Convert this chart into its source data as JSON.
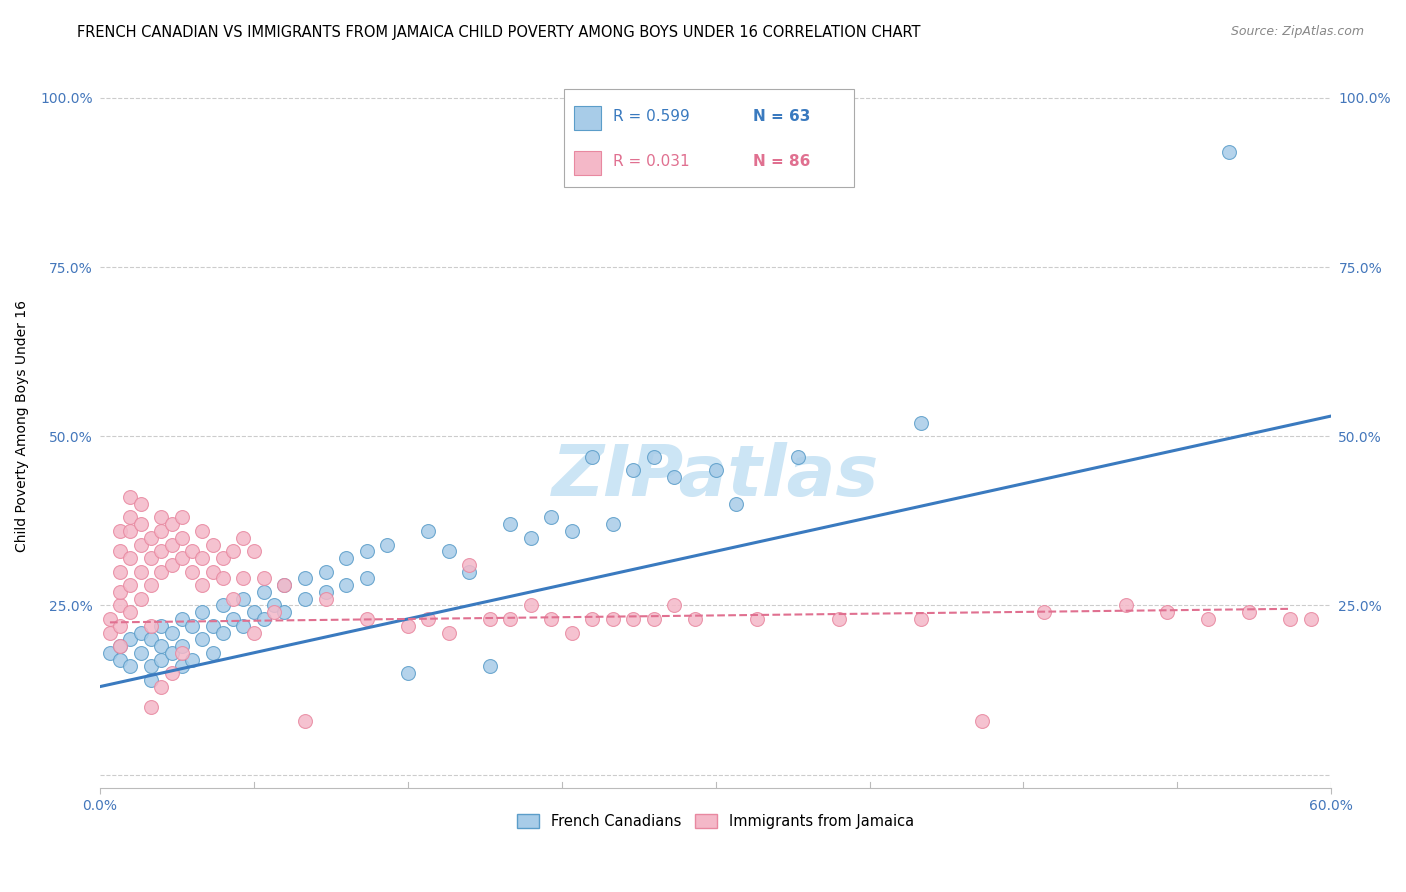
{
  "title": "FRENCH CANADIAN VS IMMIGRANTS FROM JAMAICA CHILD POVERTY AMONG BOYS UNDER 16 CORRELATION CHART",
  "source": "Source: ZipAtlas.com",
  "ylabel": "Child Poverty Among Boys Under 16",
  "xlim": [
    0.0,
    0.6
  ],
  "ylim": [
    -0.02,
    1.05
  ],
  "yticks": [
    0.0,
    0.25,
    0.5,
    0.75,
    1.0
  ],
  "ytick_labels": [
    "",
    "25.0%",
    "50.0%",
    "75.0%",
    "100.0%"
  ],
  "xtick_labels": [
    "0.0%",
    "60.0%"
  ],
  "blue_color": "#a8cce8",
  "pink_color": "#f4b8c8",
  "blue_edge_color": "#5b9dc9",
  "pink_edge_color": "#e888a0",
  "blue_line_color": "#3a7abf",
  "pink_line_color": "#e07090",
  "tick_color": "#4477bb",
  "watermark": "ZIPatlas",
  "blue_points": [
    [
      0.005,
      0.18
    ],
    [
      0.01,
      0.19
    ],
    [
      0.01,
      0.17
    ],
    [
      0.015,
      0.2
    ],
    [
      0.015,
      0.16
    ],
    [
      0.02,
      0.21
    ],
    [
      0.02,
      0.18
    ],
    [
      0.025,
      0.2
    ],
    [
      0.025,
      0.16
    ],
    [
      0.025,
      0.14
    ],
    [
      0.03,
      0.22
    ],
    [
      0.03,
      0.19
    ],
    [
      0.03,
      0.17
    ],
    [
      0.035,
      0.21
    ],
    [
      0.035,
      0.18
    ],
    [
      0.04,
      0.23
    ],
    [
      0.04,
      0.19
    ],
    [
      0.04,
      0.16
    ],
    [
      0.045,
      0.22
    ],
    [
      0.045,
      0.17
    ],
    [
      0.05,
      0.24
    ],
    [
      0.05,
      0.2
    ],
    [
      0.055,
      0.22
    ],
    [
      0.055,
      0.18
    ],
    [
      0.06,
      0.25
    ],
    [
      0.06,
      0.21
    ],
    [
      0.065,
      0.23
    ],
    [
      0.07,
      0.26
    ],
    [
      0.07,
      0.22
    ],
    [
      0.075,
      0.24
    ],
    [
      0.08,
      0.27
    ],
    [
      0.08,
      0.23
    ],
    [
      0.085,
      0.25
    ],
    [
      0.09,
      0.28
    ],
    [
      0.09,
      0.24
    ],
    [
      0.1,
      0.29
    ],
    [
      0.1,
      0.26
    ],
    [
      0.11,
      0.3
    ],
    [
      0.11,
      0.27
    ],
    [
      0.12,
      0.32
    ],
    [
      0.12,
      0.28
    ],
    [
      0.13,
      0.33
    ],
    [
      0.13,
      0.29
    ],
    [
      0.14,
      0.34
    ],
    [
      0.15,
      0.15
    ],
    [
      0.16,
      0.36
    ],
    [
      0.17,
      0.33
    ],
    [
      0.18,
      0.3
    ],
    [
      0.19,
      0.16
    ],
    [
      0.2,
      0.37
    ],
    [
      0.21,
      0.35
    ],
    [
      0.22,
      0.38
    ],
    [
      0.23,
      0.36
    ],
    [
      0.24,
      0.47
    ],
    [
      0.25,
      0.37
    ],
    [
      0.26,
      0.45
    ],
    [
      0.27,
      0.47
    ],
    [
      0.28,
      0.44
    ],
    [
      0.3,
      0.45
    ],
    [
      0.31,
      0.4
    ],
    [
      0.34,
      0.47
    ],
    [
      0.4,
      0.52
    ],
    [
      0.55,
      0.92
    ]
  ],
  "pink_points": [
    [
      0.005,
      0.21
    ],
    [
      0.005,
      0.23
    ],
    [
      0.01,
      0.25
    ],
    [
      0.01,
      0.22
    ],
    [
      0.01,
      0.19
    ],
    [
      0.01,
      0.27
    ],
    [
      0.01,
      0.3
    ],
    [
      0.01,
      0.33
    ],
    [
      0.01,
      0.36
    ],
    [
      0.015,
      0.24
    ],
    [
      0.015,
      0.28
    ],
    [
      0.015,
      0.32
    ],
    [
      0.015,
      0.36
    ],
    [
      0.015,
      0.38
    ],
    [
      0.015,
      0.41
    ],
    [
      0.02,
      0.26
    ],
    [
      0.02,
      0.3
    ],
    [
      0.02,
      0.34
    ],
    [
      0.02,
      0.37
    ],
    [
      0.02,
      0.4
    ],
    [
      0.025,
      0.28
    ],
    [
      0.025,
      0.32
    ],
    [
      0.025,
      0.35
    ],
    [
      0.025,
      0.22
    ],
    [
      0.025,
      0.1
    ],
    [
      0.03,
      0.3
    ],
    [
      0.03,
      0.33
    ],
    [
      0.03,
      0.36
    ],
    [
      0.03,
      0.38
    ],
    [
      0.03,
      0.13
    ],
    [
      0.035,
      0.31
    ],
    [
      0.035,
      0.34
    ],
    [
      0.035,
      0.37
    ],
    [
      0.035,
      0.15
    ],
    [
      0.04,
      0.32
    ],
    [
      0.04,
      0.35
    ],
    [
      0.04,
      0.38
    ],
    [
      0.04,
      0.18
    ],
    [
      0.045,
      0.3
    ],
    [
      0.045,
      0.33
    ],
    [
      0.05,
      0.32
    ],
    [
      0.05,
      0.28
    ],
    [
      0.05,
      0.36
    ],
    [
      0.055,
      0.3
    ],
    [
      0.055,
      0.34
    ],
    [
      0.06,
      0.32
    ],
    [
      0.06,
      0.29
    ],
    [
      0.065,
      0.33
    ],
    [
      0.065,
      0.26
    ],
    [
      0.07,
      0.35
    ],
    [
      0.07,
      0.29
    ],
    [
      0.075,
      0.33
    ],
    [
      0.075,
      0.21
    ],
    [
      0.08,
      0.29
    ],
    [
      0.085,
      0.24
    ],
    [
      0.09,
      0.28
    ],
    [
      0.1,
      0.08
    ],
    [
      0.11,
      0.26
    ],
    [
      0.13,
      0.23
    ],
    [
      0.15,
      0.22
    ],
    [
      0.16,
      0.23
    ],
    [
      0.17,
      0.21
    ],
    [
      0.18,
      0.31
    ],
    [
      0.19,
      0.23
    ],
    [
      0.2,
      0.23
    ],
    [
      0.21,
      0.25
    ],
    [
      0.22,
      0.23
    ],
    [
      0.23,
      0.21
    ],
    [
      0.24,
      0.23
    ],
    [
      0.25,
      0.23
    ],
    [
      0.26,
      0.23
    ],
    [
      0.27,
      0.23
    ],
    [
      0.28,
      0.25
    ],
    [
      0.29,
      0.23
    ],
    [
      0.32,
      0.23
    ],
    [
      0.36,
      0.23
    ],
    [
      0.4,
      0.23
    ],
    [
      0.43,
      0.08
    ],
    [
      0.46,
      0.24
    ],
    [
      0.5,
      0.25
    ],
    [
      0.52,
      0.24
    ],
    [
      0.54,
      0.23
    ],
    [
      0.56,
      0.24
    ],
    [
      0.58,
      0.23
    ],
    [
      0.59,
      0.23
    ]
  ],
  "blue_line_x": [
    0.0,
    0.6
  ],
  "blue_line_y": [
    0.13,
    0.53
  ],
  "pink_line_x": [
    0.005,
    0.58
  ],
  "pink_line_y": [
    0.225,
    0.245
  ],
  "title_fontsize": 10.5,
  "axis_label_fontsize": 10,
  "tick_fontsize": 10,
  "watermark_fontsize": 52,
  "watermark_color": "#cce5f5",
  "background_color": "#ffffff",
  "grid_color": "#cccccc"
}
